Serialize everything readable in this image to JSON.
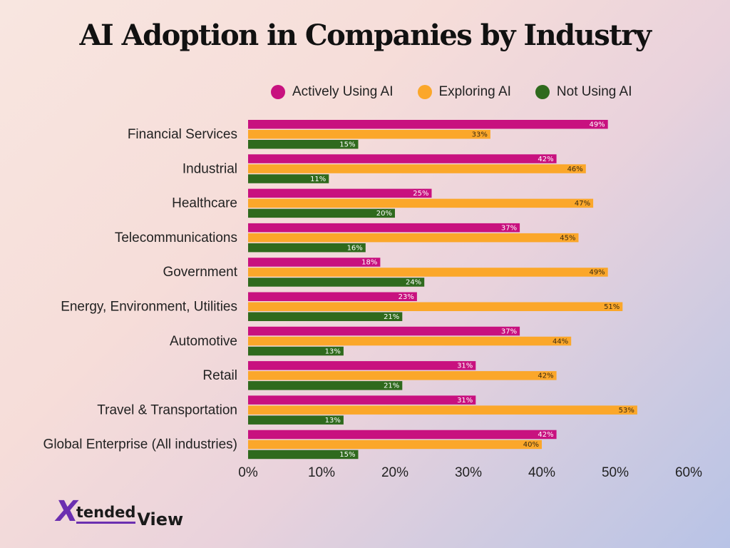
{
  "chart_data": {
    "type": "bar",
    "orientation": "horizontal",
    "title": "AI Adoption in Companies by Industry",
    "categories": [
      "Financial Services",
      "Industrial",
      "Healthcare",
      "Telecommunications",
      "Government",
      "Energy, Environment, Utilities",
      "Automotive",
      "Retail",
      "Travel & Transportation",
      "Global Enterprise (All industries)"
    ],
    "series": [
      {
        "name": "Actively Using AI",
        "color": "#c8117f",
        "values": [
          49,
          42,
          25,
          37,
          18,
          23,
          37,
          31,
          31,
          42
        ]
      },
      {
        "name": "Exploring AI",
        "color": "#fba72a",
        "values": [
          33,
          46,
          47,
          45,
          49,
          51,
          44,
          42,
          53,
          40
        ]
      },
      {
        "name": "Not Using AI",
        "color": "#2f6a1d",
        "values": [
          15,
          11,
          20,
          16,
          24,
          21,
          13,
          21,
          13,
          15
        ]
      }
    ],
    "value_axis": {
      "min": 0,
      "max": 60,
      "step": 10,
      "tick_labels": [
        "0%",
        "10%",
        "20%",
        "30%",
        "40%",
        "50%",
        "60%"
      ]
    },
    "value_suffix": "%",
    "grid": false,
    "legend_position": "top-right"
  },
  "logo": {
    "x": "X",
    "tended": "tended",
    "view": "View"
  }
}
